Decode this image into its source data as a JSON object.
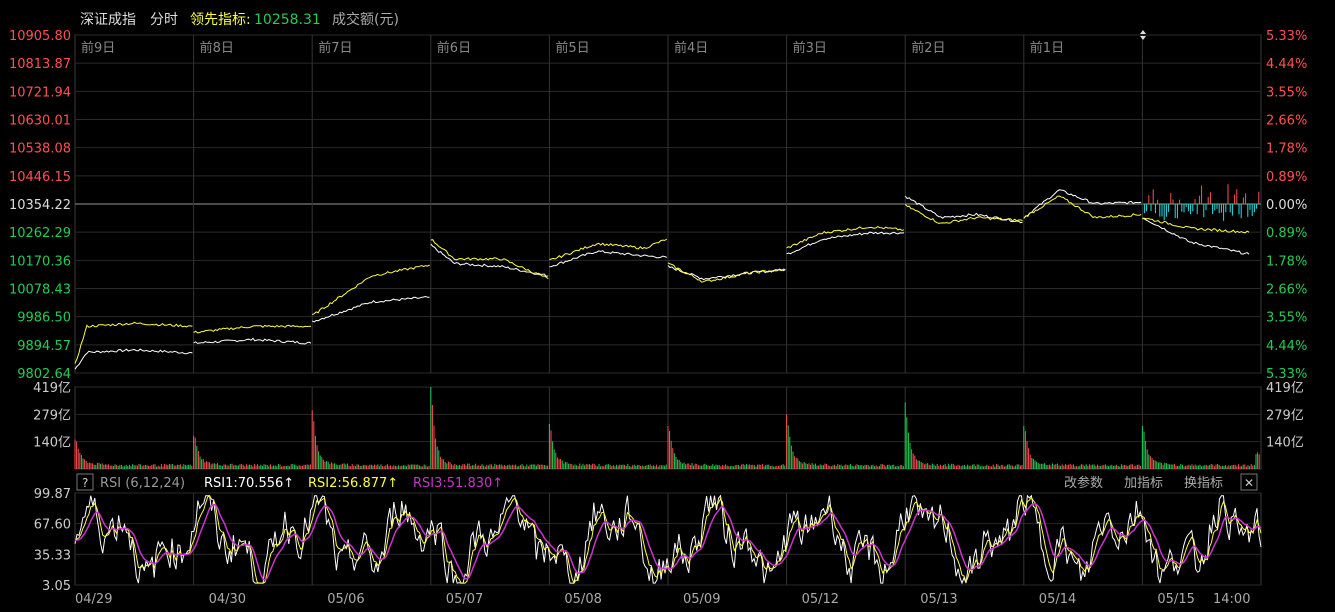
{
  "header": {
    "index_name": "深证成指",
    "mode": "分时",
    "leading_label": "领先指标:",
    "leading_value": "10258.31",
    "volume_label": "成交额(元)"
  },
  "colors": {
    "up": "#ff5050",
    "down": "#22cc55",
    "index_line": "#ffffff",
    "leading_line": "#ffff3c",
    "rsi1": "#ffffff",
    "rsi2": "#ffff3c",
    "rsi3": "#cc33cc",
    "grid": "#2a2a2a",
    "cyan": "#22e0e0"
  },
  "rsi": {
    "help": "?",
    "name": "RSI (6,12,24)",
    "rsi1": "RSI1:70.556↑",
    "rsi2": "RSI2:56.877↑",
    "rsi3": "RSI3:51.830↑",
    "buttons": [
      "改参数",
      "加指标",
      "换指标"
    ],
    "close": "✕"
  },
  "chart_data": {
    "type": "line",
    "days": [
      "前9日",
      "前8日",
      "前7日",
      "前6日",
      "前5日",
      "前4日",
      "前3日",
      "前2日",
      "前1日",
      ""
    ],
    "dates": [
      "04/29",
      "04/30",
      "05/06",
      "05/07",
      "05/08",
      "05/09",
      "05/12",
      "05/13",
      "05/14",
      "05/15"
    ],
    "last_time": "14:00",
    "price_ticks": [
      "10905.80",
      "10813.87",
      "10721.94",
      "10630.01",
      "10538.08",
      "10446.15",
      "10354.22",
      "10262.29",
      "10170.36",
      "10078.43",
      "9986.50",
      "9894.57",
      "9802.64"
    ],
    "pct_ticks": [
      "5.33%",
      "4.44%",
      "3.55%",
      "2.66%",
      "1.78%",
      "0.89%",
      "0.00%",
      "0.89%",
      "1.78%",
      "2.66%",
      "3.55%",
      "4.44%",
      "5.33%"
    ],
    "price_range": [
      9802.64,
      10905.8
    ],
    "base_price": 10354.22,
    "volume_ticks": [
      "419亿",
      "279亿",
      "140亿"
    ],
    "volume_range": [
      0,
      419
    ],
    "rsi_ticks": [
      "99.87",
      "67.60",
      "35.33",
      "3.05"
    ],
    "rsi_range": [
      3.05,
      99.87
    ],
    "series": [
      {
        "key": "index",
        "points": [
          [
            0,
            9815
          ],
          [
            0.1,
            9870
          ],
          [
            0.5,
            9878
          ],
          [
            0.99,
            9868
          ],
          [
            1,
            9900
          ],
          [
            1.5,
            9912
          ],
          [
            1.99,
            9900
          ],
          [
            2,
            9970
          ],
          [
            2.5,
            10035
          ],
          [
            2.99,
            10050
          ],
          [
            3,
            10220
          ],
          [
            3.2,
            10160
          ],
          [
            3.6,
            10150
          ],
          [
            3.99,
            10120
          ],
          [
            4,
            10150
          ],
          [
            4.4,
            10200
          ],
          [
            4.8,
            10185
          ],
          [
            4.99,
            10180
          ],
          [
            5,
            10150
          ],
          [
            5.3,
            10110
          ],
          [
            5.7,
            10130
          ],
          [
            5.99,
            10140
          ],
          [
            6,
            10190
          ],
          [
            6.3,
            10240
          ],
          [
            6.7,
            10260
          ],
          [
            6.99,
            10260
          ],
          [
            7,
            10380
          ],
          [
            7.3,
            10310
          ],
          [
            7.6,
            10320
          ],
          [
            7.99,
            10295
          ],
          [
            8,
            10310
          ],
          [
            8.3,
            10400
          ],
          [
            8.6,
            10355
          ],
          [
            8.99,
            10360
          ],
          [
            9,
            10310
          ],
          [
            9.4,
            10230
          ],
          [
            9.9,
            10190
          ]
        ]
      },
      {
        "key": "leading",
        "points": [
          [
            0,
            9830
          ],
          [
            0.1,
            9955
          ],
          [
            0.5,
            9965
          ],
          [
            0.99,
            9955
          ],
          [
            1,
            9935
          ],
          [
            1.5,
            9955
          ],
          [
            1.99,
            9955
          ],
          [
            2,
            9990
          ],
          [
            2.5,
            10120
          ],
          [
            2.99,
            10155
          ],
          [
            3,
            10240
          ],
          [
            3.2,
            10175
          ],
          [
            3.6,
            10175
          ],
          [
            3.99,
            10110
          ],
          [
            4,
            10170
          ],
          [
            4.4,
            10225
          ],
          [
            4.8,
            10210
          ],
          [
            4.99,
            10240
          ],
          [
            5,
            10160
          ],
          [
            5.3,
            10100
          ],
          [
            5.7,
            10130
          ],
          [
            5.99,
            10140
          ],
          [
            6,
            10210
          ],
          [
            6.3,
            10260
          ],
          [
            6.7,
            10280
          ],
          [
            6.99,
            10270
          ],
          [
            7,
            10350
          ],
          [
            7.3,
            10290
          ],
          [
            7.6,
            10310
          ],
          [
            7.99,
            10300
          ],
          [
            8,
            10310
          ],
          [
            8.3,
            10380
          ],
          [
            8.6,
            10310
          ],
          [
            8.99,
            10320
          ],
          [
            9,
            10310
          ],
          [
            9.4,
            10275
          ],
          [
            9.9,
            10262
          ]
        ]
      }
    ]
  }
}
